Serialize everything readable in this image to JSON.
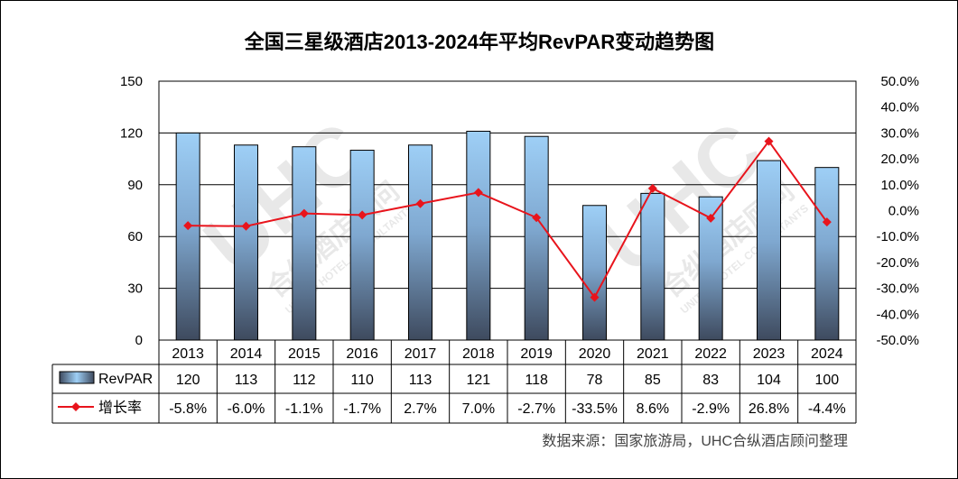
{
  "chart_data": {
    "type": "bar+line",
    "title": "全国三星级酒店2013-2024年平均RevPAR变动趋势图",
    "categories": [
      "2013",
      "2014",
      "2015",
      "2016",
      "2017",
      "2018",
      "2019",
      "2020",
      "2021",
      "2022",
      "2023",
      "2024"
    ],
    "series": [
      {
        "name": "RevPAR",
        "type": "bar",
        "axis": "left",
        "values": [
          120,
          113,
          112,
          110,
          113,
          121,
          118,
          78,
          85,
          83,
          104,
          100
        ],
        "labels": [
          "120",
          "113",
          "112",
          "110",
          "113",
          "121",
          "118",
          "78",
          "85",
          "83",
          "104",
          "100"
        ]
      },
      {
        "name": "增长率",
        "type": "line",
        "axis": "right",
        "values": [
          -5.8,
          -6.0,
          -1.1,
          -1.7,
          2.7,
          7.0,
          -2.7,
          -33.5,
          8.6,
          -2.9,
          26.8,
          -4.4
        ],
        "labels": [
          "-5.8%",
          "-6.0%",
          "-1.1%",
          "-1.7%",
          "2.7%",
          "7.0%",
          "-2.7%",
          "-33.5%",
          "8.6%",
          "-2.9%",
          "26.8%",
          "-4.4%"
        ]
      }
    ],
    "y_left": {
      "ylim": [
        0,
        150
      ],
      "ticks": [
        0,
        30,
        60,
        90,
        120,
        150
      ],
      "tick_labels": [
        "0",
        "30",
        "60",
        "90",
        "120",
        "150"
      ]
    },
    "y_right": {
      "ylim": [
        -50,
        50
      ],
      "ticks": [
        -50,
        -40,
        -30,
        -20,
        -10,
        0,
        10,
        20,
        30,
        40,
        50
      ],
      "tick_labels": [
        "-50.0%",
        "-40.0%",
        "-30.0%",
        "-20.0%",
        "-10.0%",
        "0.0%",
        "10.0%",
        "20.0%",
        "30.0%",
        "40.0%",
        "50.0%"
      ]
    },
    "grid": true,
    "legend": "data-table",
    "colors": {
      "bar_top": "#9ecff6",
      "bar_bottom": "#3e4a5e",
      "line": "#e8141c",
      "grid": "#000000"
    }
  },
  "source_note": "数据来源：国家旅游局，UHC合纵酒店顾问整理",
  "watermark": {
    "logo": "UHC",
    "text_cn": "合纵酒店顾问",
    "text_en": "UNITED HOTEL CONSULTANTS"
  }
}
